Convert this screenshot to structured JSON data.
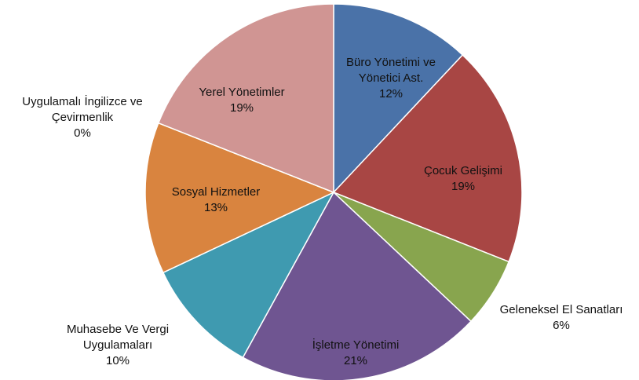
{
  "chart_data": {
    "type": "pie",
    "categories": [
      "Büro Yönetimi ve Yönetici Ast.",
      "Çocuk Gelişimi",
      "Geleneksel El Sanatları",
      "İşletme Yönetimi",
      "Muhasebe Ve Vergi Uygulamaları",
      "Sosyal Hizmetler",
      "Uygulamalı İngilizce ve Çevirmenlik",
      "Yerel Yönetimler"
    ],
    "values": [
      12,
      19,
      6,
      21,
      10,
      13,
      0,
      19
    ],
    "value_labels": [
      "12%",
      "19%",
      "6%",
      "21%",
      "10%",
      "13%",
      "0%",
      "19%"
    ],
    "colors": [
      "#4a72a8",
      "#a84644",
      "#88a54e",
      "#6f5591",
      "#3f9ab0",
      "#d9843f",
      "#9bbad6",
      "#d09593"
    ]
  }
}
